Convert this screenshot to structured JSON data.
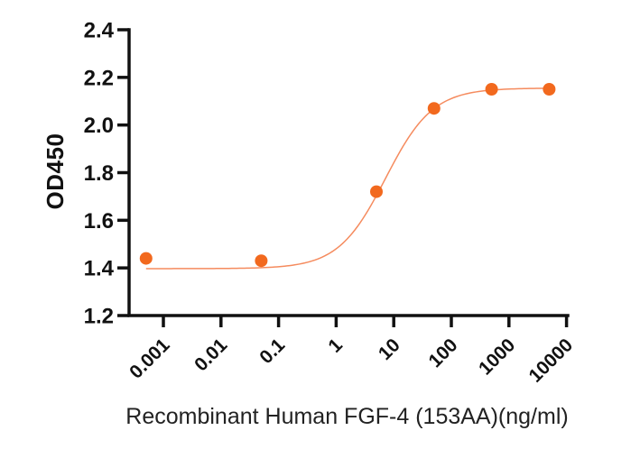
{
  "chart_data": {
    "type": "scatter",
    "subtype": "dose-response-4PL",
    "title": "",
    "xlabel": "Recombinant Human FGF-4 (153AA)(ng/ml)",
    "ylabel": "OD450",
    "x_scale": "log10",
    "xlim_log10": [
      -3.55,
      4
    ],
    "ylim": [
      1.2,
      2.4
    ],
    "grid": false,
    "legend": "none",
    "x_ticks": [
      0.001,
      0.01,
      0.1,
      1,
      10,
      100,
      1000,
      10000
    ],
    "x_tick_labels": [
      "0.001",
      "0.01",
      "0.1",
      "1",
      "10",
      "100",
      "1000",
      "10000"
    ],
    "y_ticks": [
      1.2,
      1.4,
      1.6,
      1.8,
      2.0,
      2.2,
      2.4
    ],
    "y_tick_labels": [
      "1.2",
      "1.4",
      "1.6",
      "1.8",
      "2.0",
      "2.2",
      "2.4"
    ],
    "points": [
      {
        "x": 0.0005,
        "y": 1.44
      },
      {
        "x": 0.05,
        "y": 1.43
      },
      {
        "x": 5,
        "y": 1.72
      },
      {
        "x": 50,
        "y": 2.07
      },
      {
        "x": 500,
        "y": 2.15
      },
      {
        "x": 5000,
        "y": 2.15
      }
    ],
    "fit_curve": {
      "model": "4PL",
      "bottom": 1.397,
      "top": 2.155,
      "ec50": 7.2,
      "hill": 1.06
    },
    "colors": {
      "marker": "#F2691E",
      "curve": "#F58B5E",
      "axis": "#111111",
      "text": "#111111",
      "background": "#ffffff"
    }
  }
}
